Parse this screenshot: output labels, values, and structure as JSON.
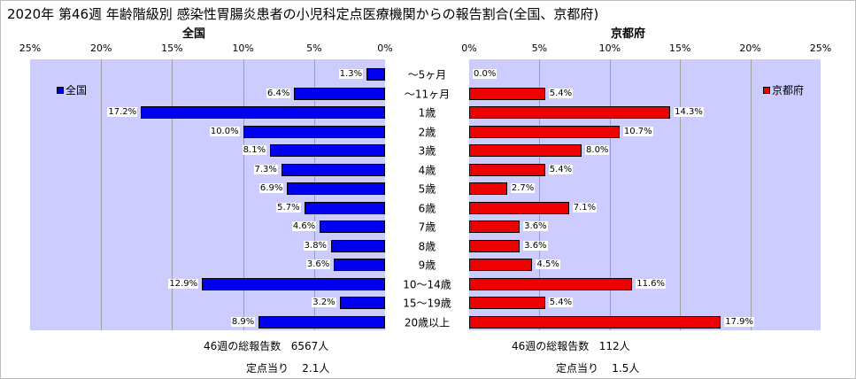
{
  "title": "2020年 第46週 年齢階級別 感染性胃腸炎患者の小児科定点医療機関からの報告割合(全国、京都府)",
  "colors": {
    "national": "#0000ee",
    "kyoto": "#ee0000",
    "plot_background": "#ccccff",
    "gridline": "#a0a0a0"
  },
  "chart_data": {
    "type": "bar",
    "orientation": "horizontal-butterfly",
    "categories": [
      "～5ヶ月",
      "～11ヶ月",
      "1歳",
      "2歳",
      "3歳",
      "4歳",
      "5歳",
      "6歳",
      "7歳",
      "8歳",
      "9歳",
      "10～14歳",
      "15～19歳",
      "20歳以上"
    ],
    "xlim": [
      0,
      25
    ],
    "x_ticks": [
      "0%",
      "5%",
      "10%",
      "15%",
      "20%",
      "25%"
    ],
    "grid": "vertical",
    "series": [
      {
        "name": "全国",
        "panel_title": "全国",
        "legend_position": "top-left",
        "values": [
          1.3,
          6.4,
          17.2,
          10.0,
          8.1,
          7.3,
          6.9,
          5.7,
          4.6,
          3.8,
          3.6,
          12.9,
          3.2,
          8.9
        ],
        "labels": [
          "1.3%",
          "6.4%",
          "17.2%",
          "10.0%",
          "8.1%",
          "7.3%",
          "6.9%",
          "5.7%",
          "4.6%",
          "3.8%",
          "3.6%",
          "12.9%",
          "3.2%",
          "8.9%"
        ]
      },
      {
        "name": "京都府",
        "panel_title": "京都府",
        "legend_position": "top-right",
        "values": [
          0.0,
          5.4,
          14.3,
          10.7,
          8.0,
          5.4,
          2.7,
          7.1,
          3.6,
          3.6,
          4.5,
          11.6,
          5.4,
          17.9
        ],
        "labels": [
          "0.0%",
          "5.4%",
          "14.3%",
          "10.7%",
          "8.0%",
          "5.4%",
          "2.7%",
          "7.1%",
          "3.6%",
          "3.6%",
          "4.5%",
          "11.6%",
          "5.4%",
          "17.9%"
        ]
      }
    ]
  },
  "footer": {
    "national": {
      "total_label": "46週の総報告数",
      "total_value": "6567人",
      "per_site_label": "定点当り",
      "per_site_value": "2.1人"
    },
    "kyoto": {
      "total_label": "46週の総報告数",
      "total_value": "112人",
      "per_site_label": "定点当り",
      "per_site_value": "1.5人"
    }
  }
}
